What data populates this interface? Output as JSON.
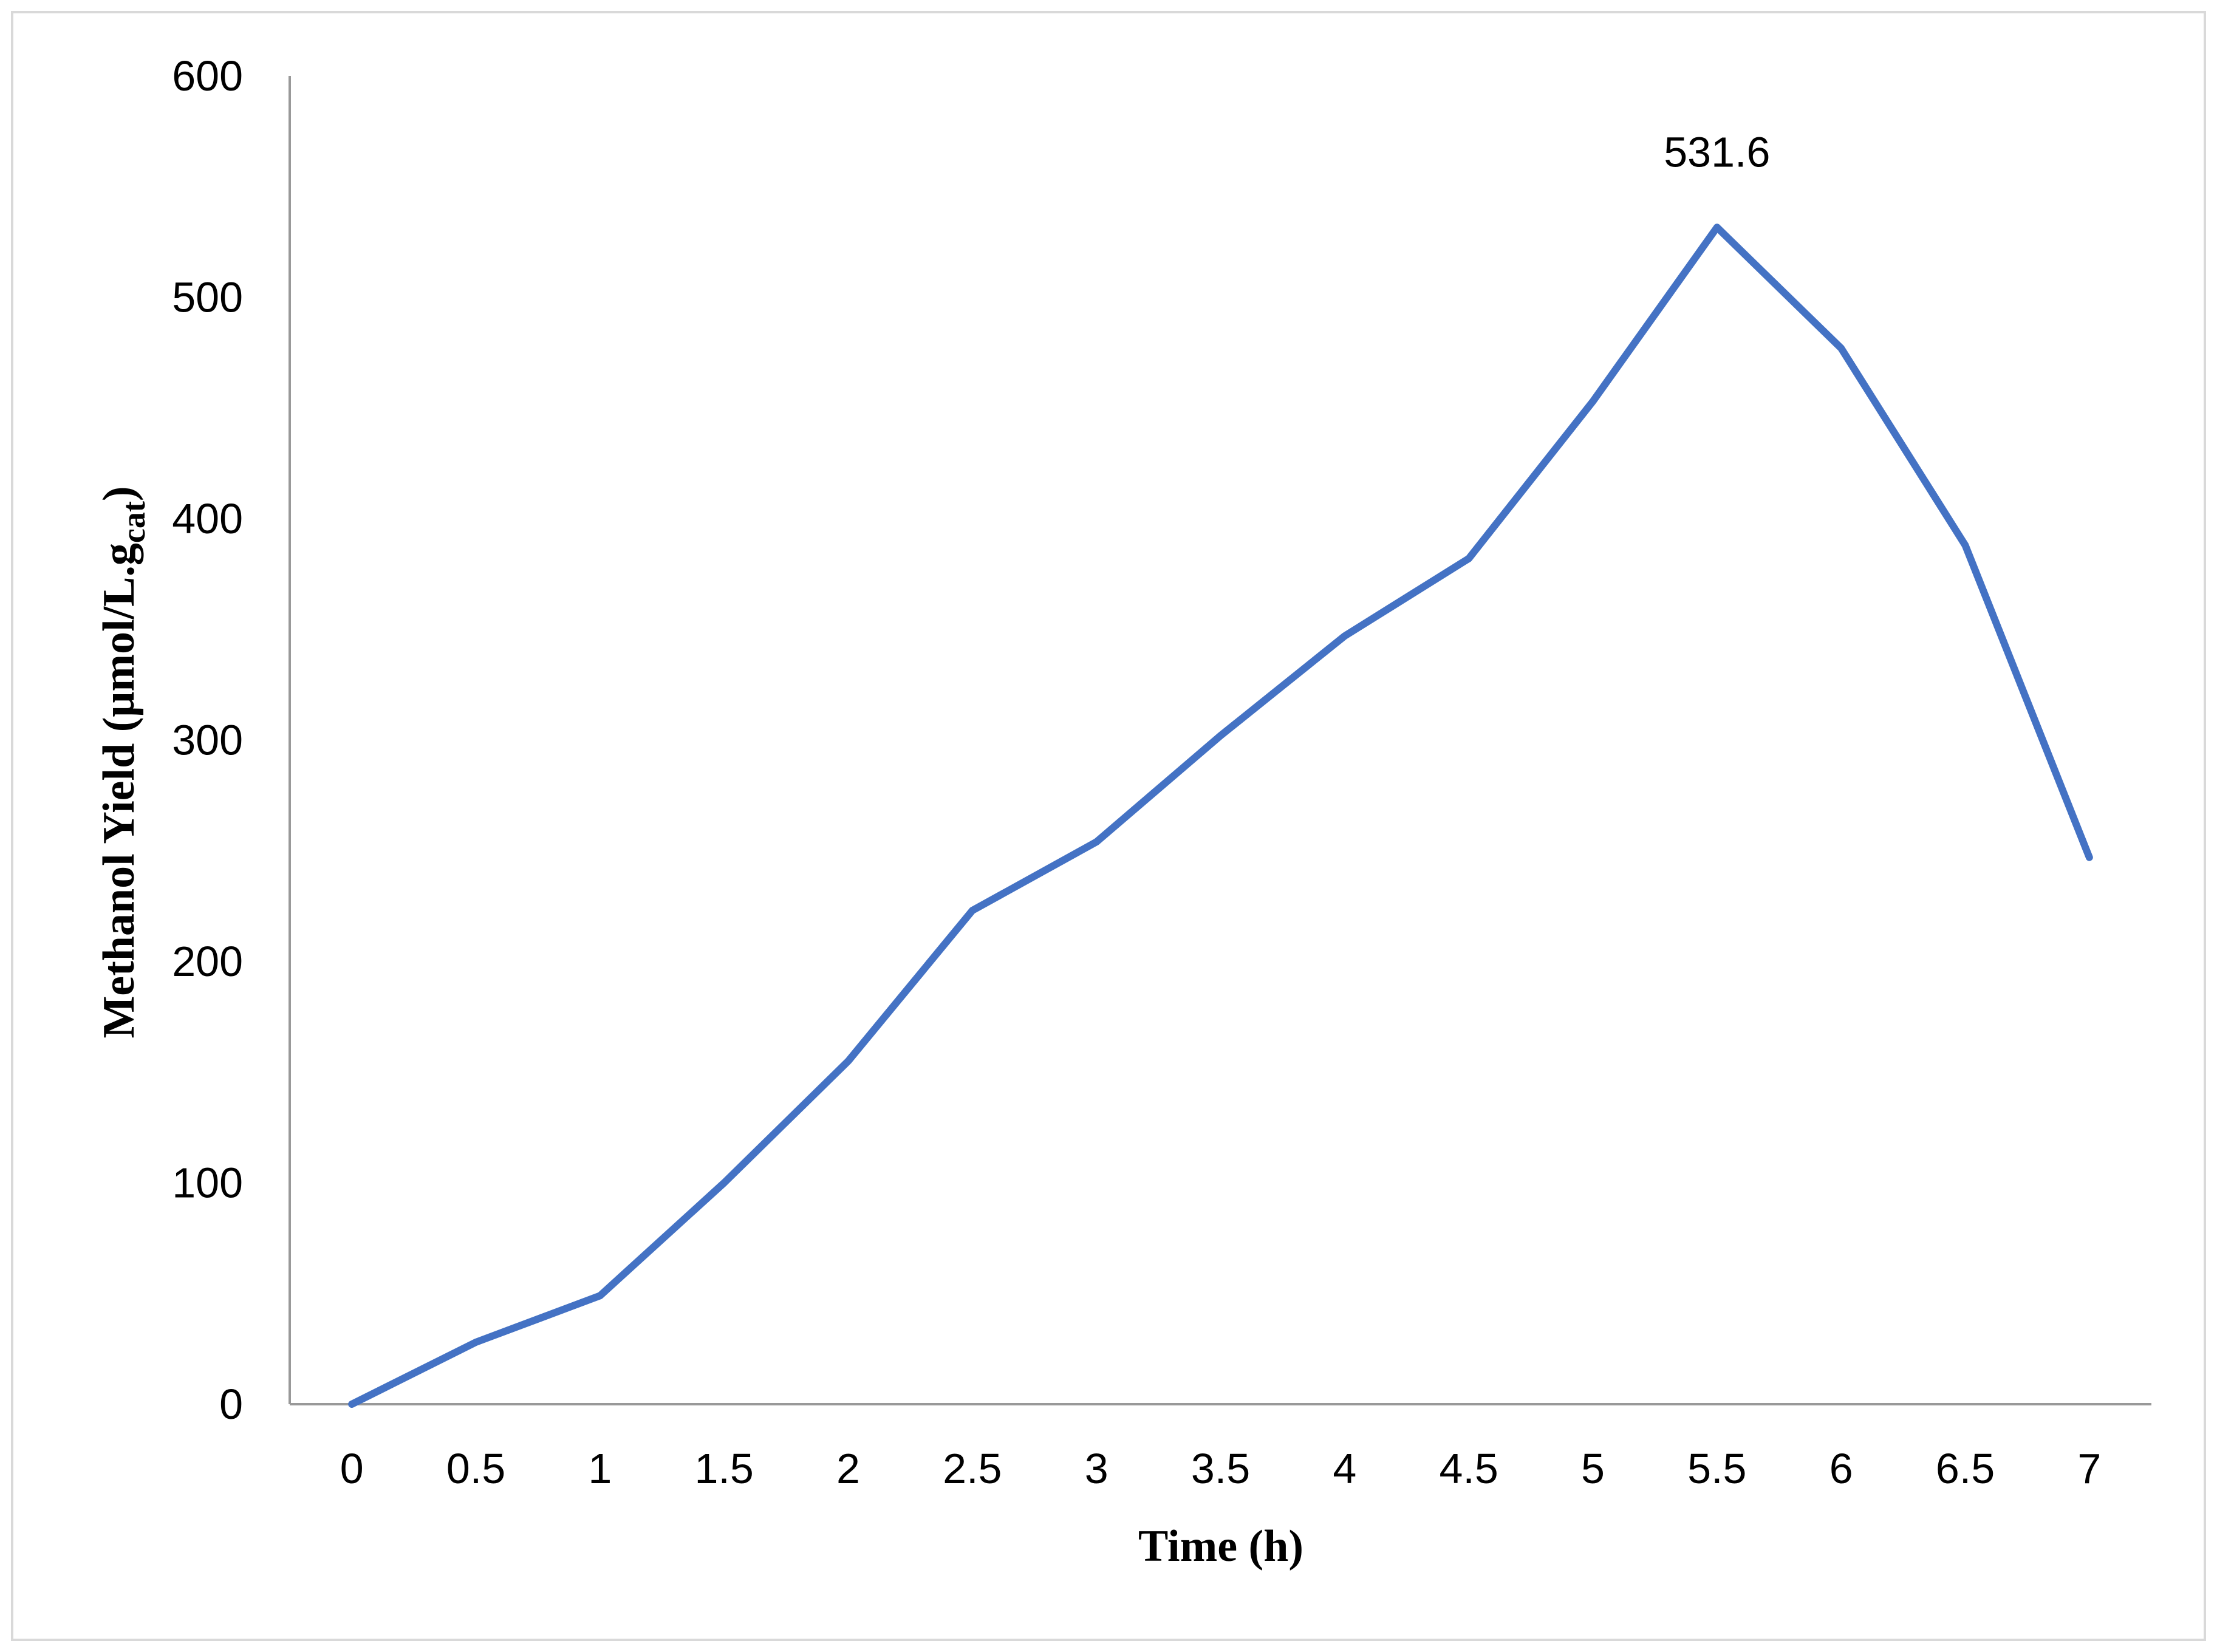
{
  "chart_data": {
    "type": "line",
    "xlabel": "Time (h)",
    "ylabel": {
      "main": "Methanol Yield (μmol/L.g",
      "sub": "cat",
      "close": ")"
    },
    "x": [
      "0",
      "0.5",
      "1",
      "1.5",
      "2",
      "2.5",
      "3",
      "3.5",
      "4",
      "4.5",
      "5",
      "5.5",
      "6",
      "6.5",
      "7"
    ],
    "series": [
      {
        "values": [
          0,
          28,
          49,
          100,
          155,
          223,
          254,
          302,
          347,
          382,
          453,
          531.6,
          477,
          388,
          247
        ],
        "color": "#4472C4"
      }
    ],
    "ylim": [
      0,
      600
    ],
    "yticks": [
      "0",
      "100",
      "200",
      "300",
      "400",
      "500",
      "600"
    ],
    "annotations": [
      {
        "text": "531.6",
        "x": "5.5",
        "y": 531.6
      }
    ],
    "grid": false,
    "legend": "none"
  }
}
